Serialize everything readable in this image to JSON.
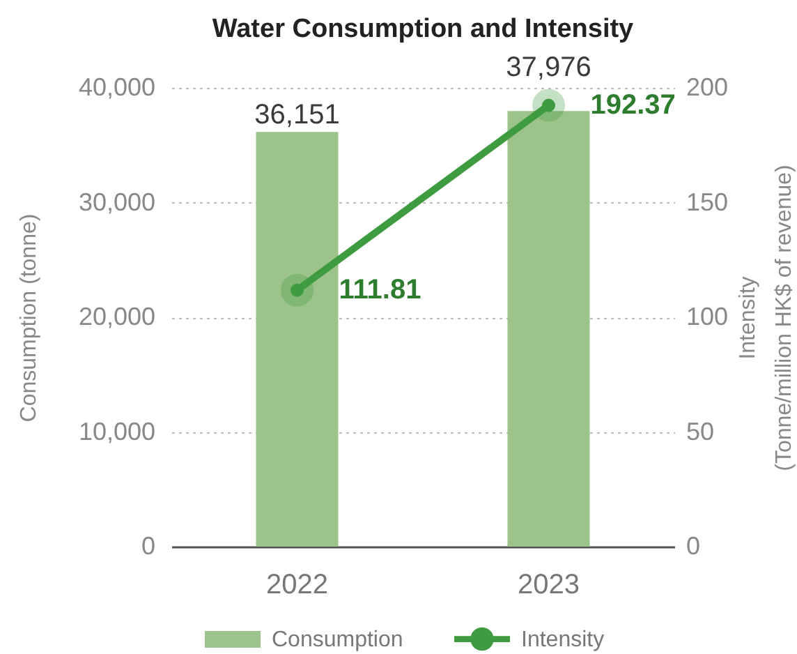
{
  "chart_data": {
    "type": "bar",
    "title": "Water Consumption and Intensity",
    "categories": [
      "2022",
      "2023"
    ],
    "ylabel": "Consumption (tonne)",
    "y2label": "Intensity\n(Tonne/million HK$ of revenue)",
    "series": [
      {
        "name": "Consumption",
        "color": "#9cc38b",
        "values": [
          36151,
          37976
        ],
        "value_labels": [
          "36,151",
          "37,976"
        ]
      },
      {
        "name": "Intensity",
        "type": "line",
        "axis": "y2",
        "color": "#3f9b3f",
        "values": [
          111.81,
          192.37
        ],
        "value_labels": [
          "111.81",
          "192.37"
        ]
      }
    ],
    "ylim": [
      0,
      40000
    ],
    "yticks": [
      0,
      {
        "value": 10000,
        "label": "10,000"
      },
      {
        "value": 20000,
        "label": "20,000"
      },
      {
        "value": 30000,
        "label": "30,000"
      },
      {
        "value": 40000,
        "label": "40,000"
      }
    ],
    "y2lim": [
      0,
      200
    ],
    "y2ticks": [
      0,
      50,
      100,
      150,
      200
    ],
    "grid": "y",
    "legend": "bottom",
    "marker": "circle",
    "line_style": "solid"
  }
}
